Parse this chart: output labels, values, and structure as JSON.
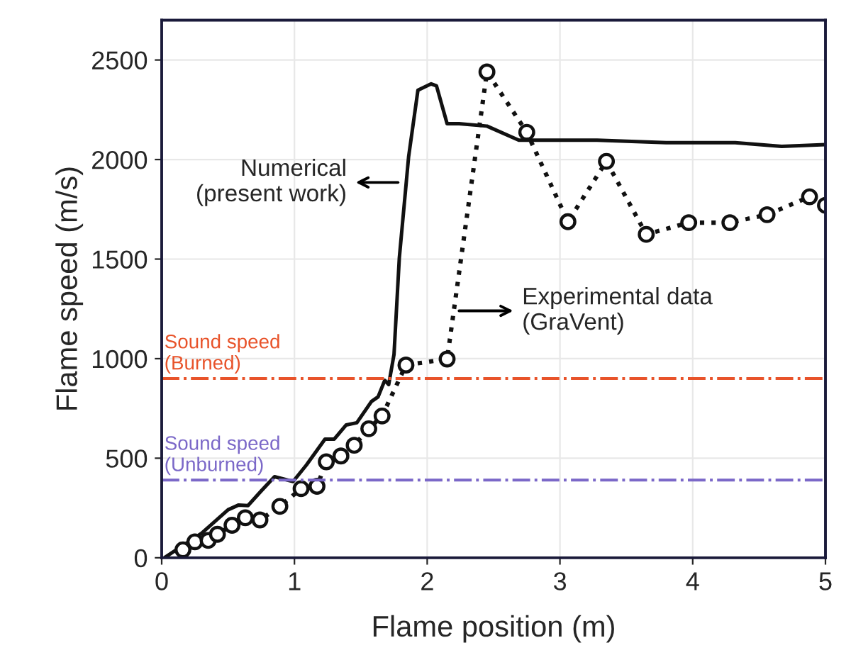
{
  "chart_data": {
    "type": "line",
    "xlabel": "Flame position (m)",
    "ylabel": "Flame speed (m/s)",
    "xlim": [
      0,
      5
    ],
    "ylim": [
      0,
      2700
    ],
    "xticks": [
      0,
      1,
      2,
      3,
      4,
      5
    ],
    "yticks": [
      0,
      500,
      1000,
      1500,
      2000,
      2500
    ],
    "grid": true,
    "legend": false,
    "series": [
      {
        "color": "#111111",
        "line_style": "solid",
        "marker": "none",
        "x": [
          0.02,
          0.3,
          0.5,
          0.58,
          0.65,
          0.75,
          0.85,
          0.99,
          1.09,
          1.23,
          1.3,
          1.39,
          1.47,
          1.58,
          1.63,
          1.68,
          1.71,
          1.75,
          1.79,
          1.86,
          1.93,
          2.03,
          2.07,
          2.15,
          2.2,
          2.24,
          2.45,
          2.69,
          3.28,
          3.8,
          4.32,
          4.67,
          5.0
        ],
        "values": [
          0,
          123,
          241,
          265,
          262,
          336,
          407,
          383,
          466,
          596,
          596,
          667,
          678,
          785,
          808,
          891,
          870,
          1021,
          1506,
          2014,
          2348,
          2380,
          2370,
          2180,
          2180,
          2180,
          2168,
          2097,
          2097,
          2085,
          2085,
          2066,
          2075
        ]
      },
      {
        "color": "#111111",
        "line_style": "dotted",
        "marker": "circle",
        "x": [
          0.16,
          0.25,
          0.35,
          0.42,
          0.53,
          0.63,
          0.74,
          0.89,
          1.05,
          1.17,
          1.24,
          1.35,
          1.45,
          1.56,
          1.66,
          1.84,
          2.15,
          2.45,
          2.75,
          3.06,
          3.35,
          3.65,
          3.97,
          4.28,
          4.56,
          4.88,
          5.0
        ],
        "values": [
          40,
          80,
          87,
          118,
          163,
          201,
          190,
          258,
          347,
          359,
          482,
          511,
          565,
          648,
          712,
          968,
          998,
          2440,
          2137,
          1688,
          1991,
          1624,
          1683,
          1683,
          1723,
          1813,
          1770
        ]
      }
    ],
    "ref_lines": [
      {
        "axis": "y",
        "value": 900,
        "label": "Sound speed\n(Burned)",
        "color": "#e8532a",
        "line_style": "dashdot"
      },
      {
        "axis": "y",
        "value": 390,
        "label": "Sound speed\n(Unburned)",
        "color": "#7b68c8",
        "line_style": "dashdot"
      }
    ],
    "annotations": [
      {
        "text": "Numerical\n(present work)",
        "x": 1.78,
        "y": 1885
      },
      {
        "text": "Experimental data\n(GraVent)",
        "x": 2.24,
        "y": 1240
      }
    ]
  }
}
